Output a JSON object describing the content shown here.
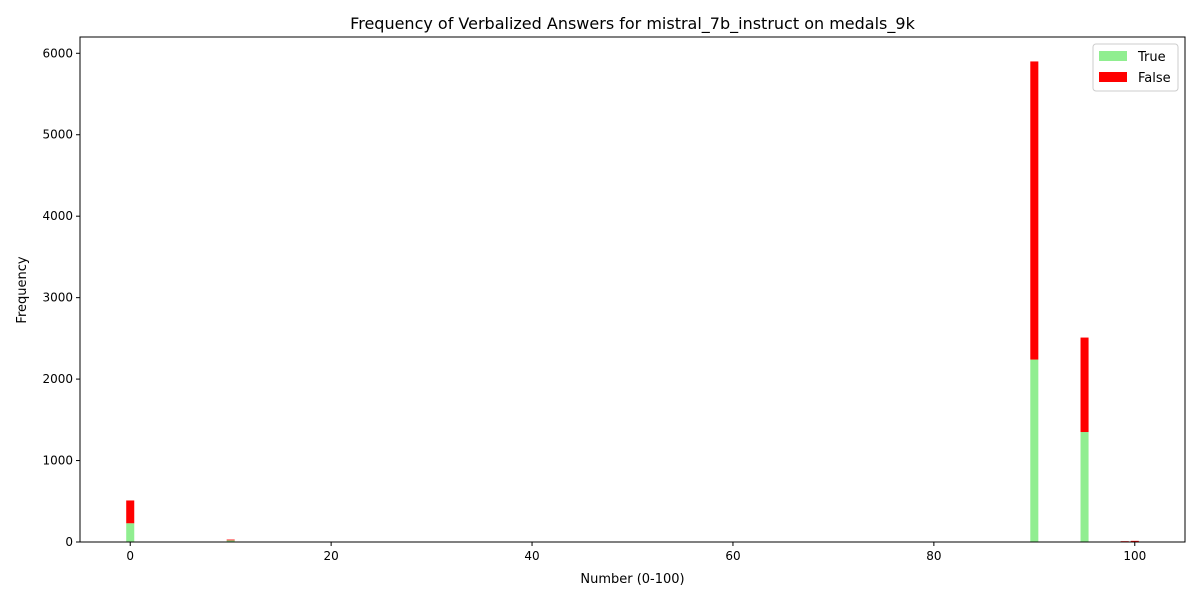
{
  "chart_data": {
    "type": "bar",
    "stacked": true,
    "title": "Frequency of Verbalized Answers for mistral_7b_instruct on medals_9k",
    "xlabel": "Number (0-100)",
    "ylabel": "Frequency",
    "xlim": [
      -5,
      105
    ],
    "ylim": [
      0,
      6200
    ],
    "xticks": [
      0,
      20,
      40,
      60,
      80,
      100
    ],
    "yticks": [
      0,
      1000,
      2000,
      3000,
      4000,
      5000,
      6000
    ],
    "grid": false,
    "legend_position": "top-right",
    "bar_width": 0.8,
    "x": [
      0,
      10,
      90,
      95,
      99,
      100
    ],
    "series": [
      {
        "name": "True",
        "color": "#90ee90",
        "values": [
          230,
          20,
          2240,
          1350,
          5,
          2
        ]
      },
      {
        "name": "False",
        "color": "#ff0000",
        "values": [
          280,
          10,
          3660,
          1160,
          5,
          12
        ]
      }
    ]
  }
}
